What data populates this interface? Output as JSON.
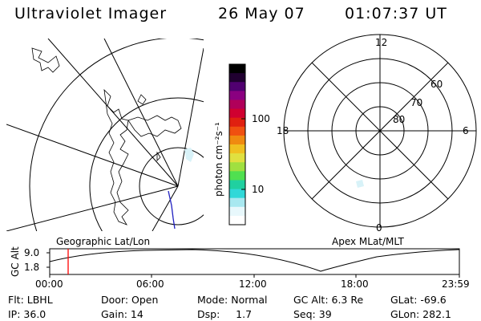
{
  "header": {
    "instrument": "Ultraviolet Imager",
    "date": "26 May 07",
    "time": "01:07:37 UT"
  },
  "left_panel": {
    "caption": "Geographic Lat/Lon"
  },
  "colorbar": {
    "unit_label": "photon cm⁻²s⁻¹",
    "ticks": [
      "100",
      "10"
    ],
    "colors": [
      "#000000",
      "#200030",
      "#500070",
      "#8a0080",
      "#b0005a",
      "#d00030",
      "#e02010",
      "#f05010",
      "#f08a10",
      "#f0c020",
      "#e0e040",
      "#a0e040",
      "#50e050",
      "#20d0a0",
      "#30d8d8",
      "#a8e8f0",
      "#e8f8fc",
      "#ffffff"
    ]
  },
  "right_panel": {
    "caption": "Apex MLat/MLT",
    "mlt_labels": {
      "top": "12",
      "left": "18",
      "right": "6",
      "bottom": "0"
    },
    "mlat_labels": [
      "60",
      "70",
      "80"
    ]
  },
  "altitude_plot": {
    "ylabel": "GC Alt",
    "ymax_label": "9.0",
    "ymin_label": "1.8",
    "time_ticks": [
      "00:00",
      "06:00",
      "12:00",
      "18:00",
      "23:59"
    ],
    "marker_color": "#ff0000",
    "line_color": "#000000"
  },
  "info": {
    "row1": {
      "flt": "Flt: LBHL",
      "door": "Door: Open",
      "mode": "Mode: Normal",
      "gcalt": "GC Alt: 6.3 Re",
      "glat": "GLat: -69.6"
    },
    "row2": {
      "ip": "IP: 36.0",
      "gain": "Gain: 14",
      "dsp": "Dsp:     1.7",
      "seq": "Seq: 39",
      "glon": "GLon: 282.1"
    }
  }
}
